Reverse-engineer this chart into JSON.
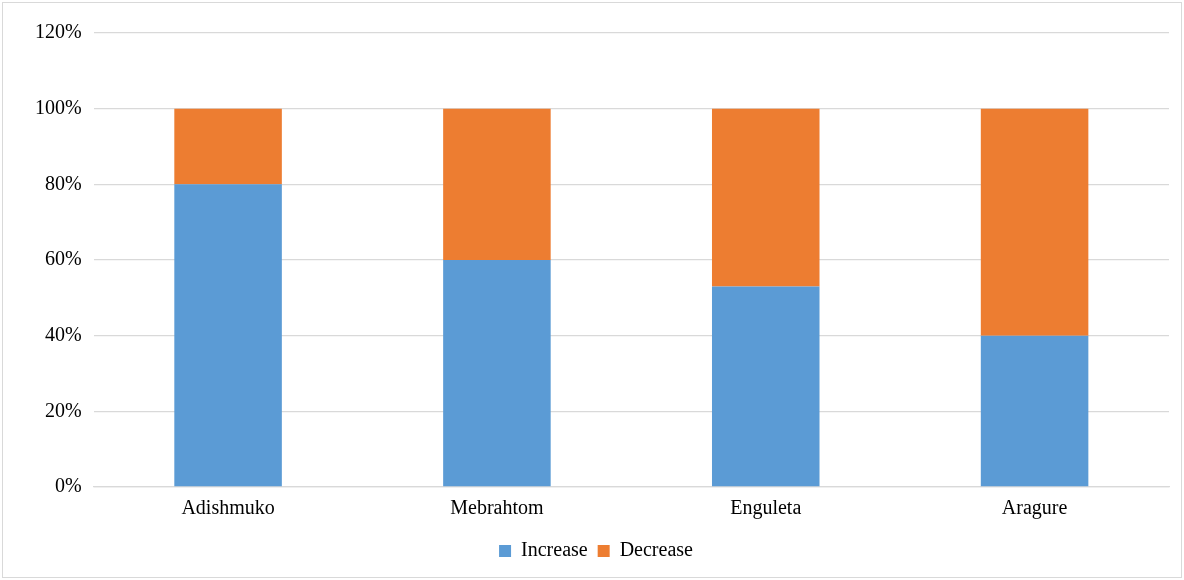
{
  "chart_data": {
    "type": "bar",
    "stacked": true,
    "categories": [
      "Adishmuko",
      "Mebrahtom",
      "Enguleta",
      "Aragure"
    ],
    "series": [
      {
        "name": "Increase",
        "color": "#5b9bd5",
        "values": [
          80,
          60,
          53,
          40
        ]
      },
      {
        "name": "Decrease",
        "color": "#ed7d31",
        "values": [
          20,
          40,
          47,
          60
        ]
      }
    ],
    "ylim": [
      0,
      120
    ],
    "yticks": [
      {
        "value": 0,
        "label": "0%"
      },
      {
        "value": 20,
        "label": "20%"
      },
      {
        "value": 40,
        "label": "40%"
      },
      {
        "value": 60,
        "label": "60%"
      },
      {
        "value": 80,
        "label": "80%"
      },
      {
        "value": 100,
        "label": "100%"
      },
      {
        "value": 120,
        "label": "120%"
      }
    ],
    "grid": "y",
    "legend": "bottom"
  }
}
